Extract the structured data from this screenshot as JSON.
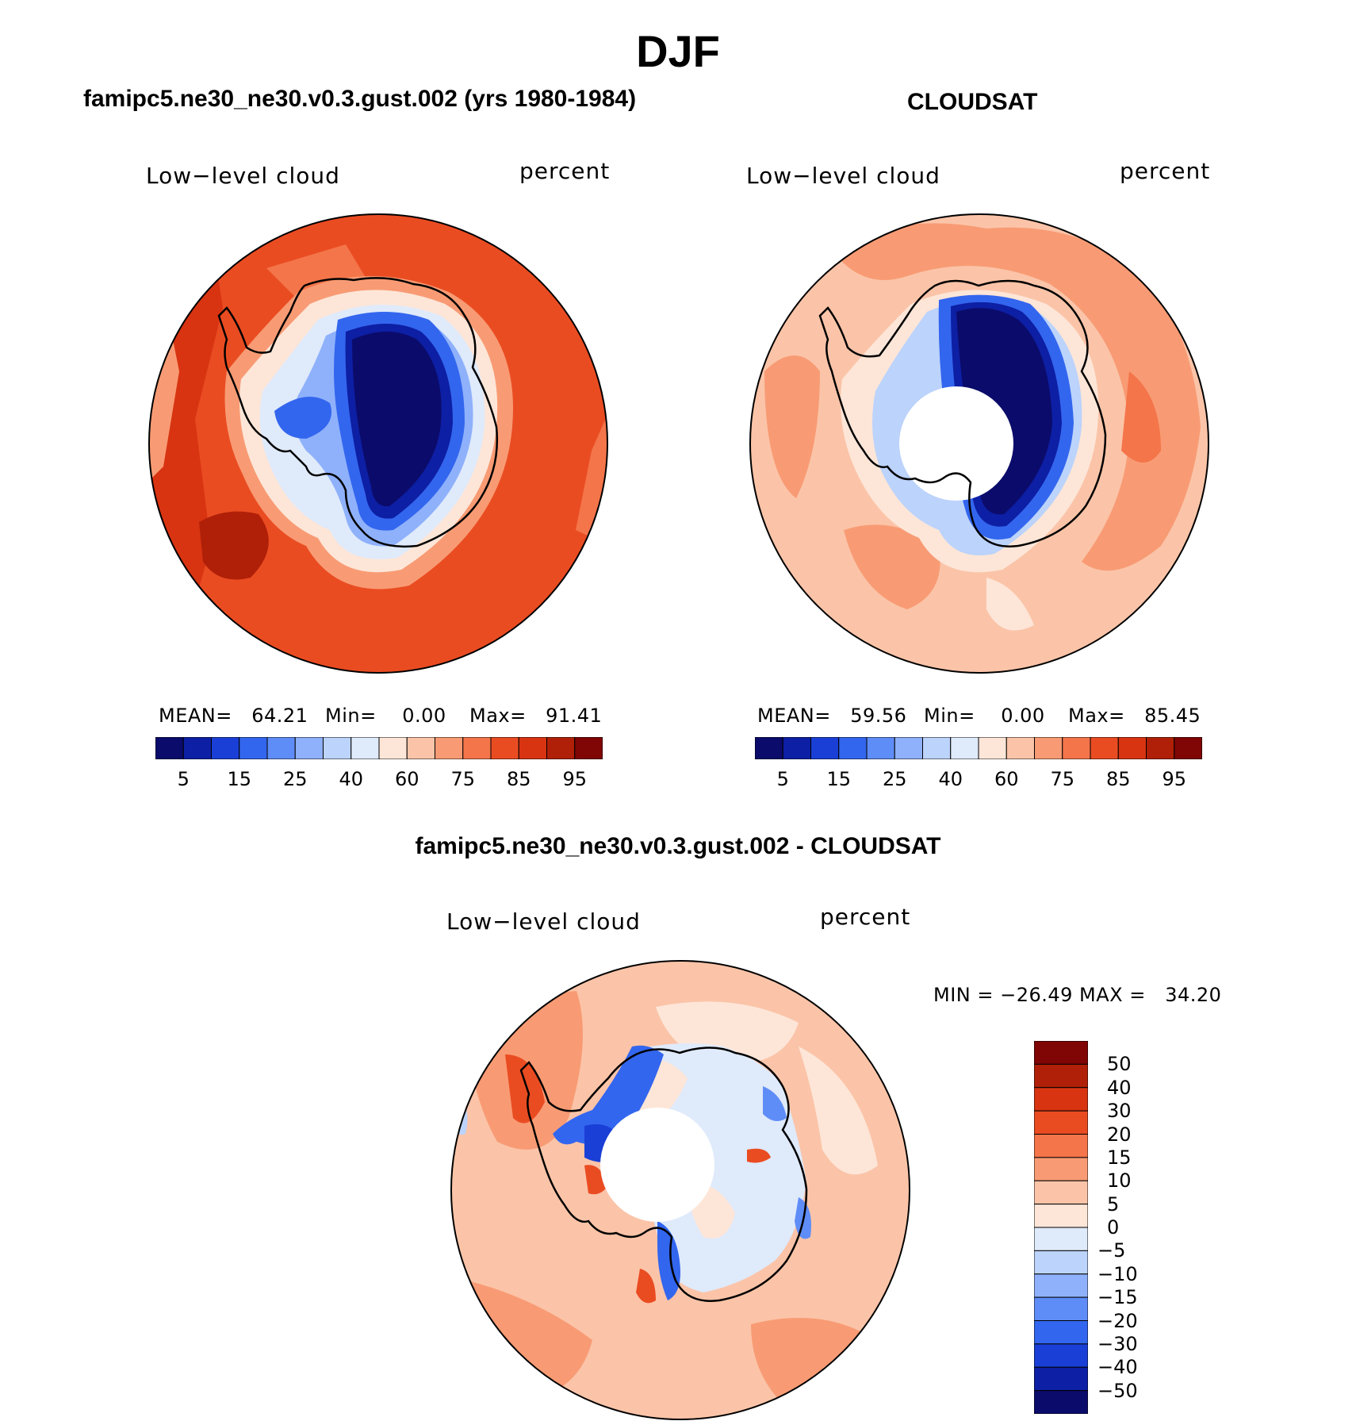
{
  "title": "DJF",
  "panels": [
    {
      "id": "model",
      "title": "famipc5.ne30_ne30.v0.3.gust.002 (yrs 1980-1984)",
      "variable_label": "Low−level cloud",
      "units_label": "percent",
      "mean_text": "MEAN=   64.21",
      "min_text": "Min=    0.00",
      "max_text": "Max=   91.41",
      "mean": 64.21,
      "min": 0.0,
      "max": 91.41
    },
    {
      "id": "obs",
      "title": "CLOUDSAT",
      "variable_label": "Low−level cloud",
      "units_label": "percent",
      "mean_text": "MEAN=   59.56",
      "min_text": "Min=    0.00",
      "max_text": "Max=   85.45",
      "mean": 59.56,
      "min": 0.0,
      "max": 85.45
    },
    {
      "id": "diff",
      "title": "famipc5.ne30_ne30.v0.3.gust.002 - CLOUDSAT",
      "variable_label": "Low−level cloud",
      "units_label": "percent",
      "minmax_text": "MIN = −26.49 MAX =   34.20",
      "min": -26.49,
      "max": 34.2
    }
  ],
  "colorbar_main": {
    "colors": [
      "#0b0b6b",
      "#0d1fa4",
      "#1a3fd6",
      "#3366ee",
      "#5f8df7",
      "#8fb1fb",
      "#bcd3fb",
      "#dfeafb",
      "#fde6d8",
      "#fbc4a8",
      "#f89b74",
      "#f4754a",
      "#ea4c22",
      "#d83412",
      "#b02008",
      "#800505"
    ],
    "tick_labels": [
      "5",
      "15",
      "25",
      "40",
      "60",
      "75",
      "85",
      "95"
    ]
  },
  "colorbar_diff": {
    "colors_top_to_bottom": [
      "#800505",
      "#b02008",
      "#d83412",
      "#ea4c22",
      "#f4754a",
      "#f89b74",
      "#fbc4a8",
      "#fde6d8",
      "#dfeafb",
      "#bcd3fb",
      "#8fb1fb",
      "#5f8df7",
      "#3366ee",
      "#1a3fd6",
      "#0d1fa4",
      "#0b0b6b"
    ],
    "tick_labels": [
      "50",
      "40",
      "30",
      "20",
      "15",
      "10",
      "5",
      "0",
      "−5",
      "−10",
      "−15",
      "−20",
      "−30",
      "−40",
      "−50"
    ]
  }
}
